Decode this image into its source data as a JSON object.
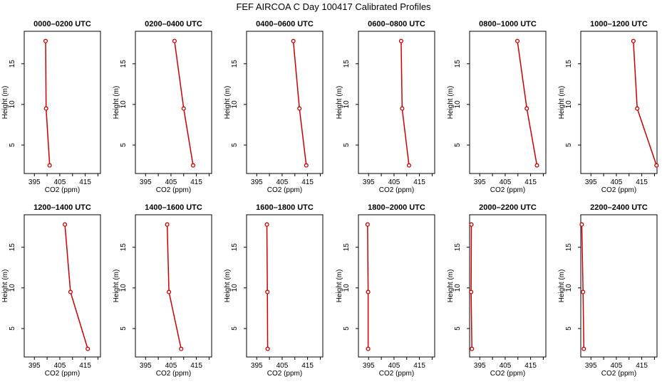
{
  "title": "FEF AIRCOA C  Day 100417  Calibrated Profiles",
  "chart_data": {
    "type": "line",
    "xlabel": "CO2 (ppm)",
    "ylabel": "Height (m)",
    "xlim": [
      391,
      421
    ],
    "ylim": [
      1.5,
      19
    ],
    "xticks": [
      395,
      405,
      415
    ],
    "yticks": [
      5,
      10,
      15
    ],
    "line_color": "#cc0000",
    "panels": [
      {
        "title": "0000–0200 UTC",
        "co2": [
          401.0,
          399.6,
          399.4
        ],
        "height": [
          2.5,
          9.5,
          17.8
        ]
      },
      {
        "title": "0200–0400 UTC",
        "co2": [
          413.7,
          410.0,
          406.4
        ],
        "height": [
          2.5,
          9.5,
          17.8
        ]
      },
      {
        "title": "0400–0600 UTC",
        "co2": [
          414.5,
          411.8,
          409.4
        ],
        "height": [
          2.5,
          9.5,
          17.8
        ]
      },
      {
        "title": "0600–0800 UTC",
        "co2": [
          410.9,
          408.2,
          407.8
        ],
        "height": [
          2.5,
          9.5,
          17.8
        ]
      },
      {
        "title": "0800–1000 UTC",
        "co2": [
          417.5,
          413.5,
          409.8
        ],
        "height": [
          2.5,
          9.5,
          17.8
        ]
      },
      {
        "title": "1000–1200 UTC",
        "co2": [
          420.8,
          413.2,
          411.7
        ],
        "height": [
          2.5,
          9.5,
          17.8
        ]
      },
      {
        "title": "1200–1400 UTC",
        "co2": [
          416.0,
          409.2,
          407.0
        ],
        "height": [
          2.5,
          9.5,
          17.8
        ]
      },
      {
        "title": "1400–1600 UTC",
        "co2": [
          409.0,
          404.2,
          403.5
        ],
        "height": [
          2.5,
          9.5,
          17.8
        ]
      },
      {
        "title": "1600–1800 UTC",
        "co2": [
          399.3,
          399.2,
          399.0
        ],
        "height": [
          2.5,
          9.5,
          17.8
        ]
      },
      {
        "title": "1800–2000 UTC",
        "co2": [
          394.8,
          394.8,
          394.6
        ],
        "height": [
          2.5,
          9.5,
          17.8
        ]
      },
      {
        "title": "2000–2200 UTC",
        "co2": [
          391.9,
          391.6,
          391.7
        ],
        "height": [
          2.5,
          9.5,
          17.8
        ]
      },
      {
        "title": "2200–2400 UTC",
        "co2": [
          392.2,
          391.9,
          391.4
        ],
        "height": [
          2.5,
          9.5,
          17.8
        ]
      }
    ]
  }
}
